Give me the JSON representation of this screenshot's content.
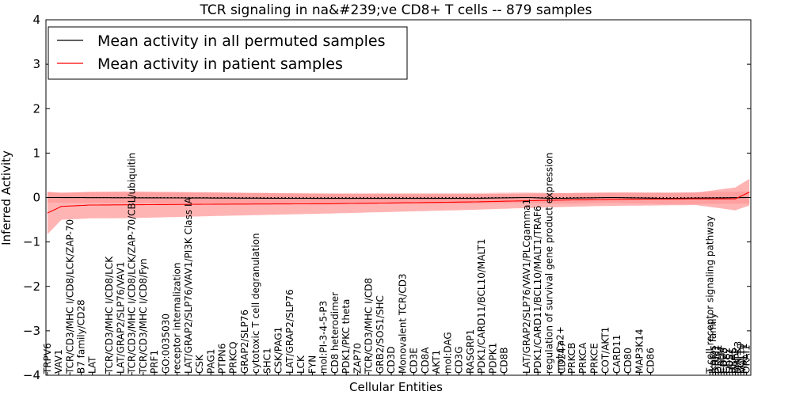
{
  "chart_data": {
    "type": "line",
    "title": "TCR signaling in na&#239;ve CD8+ T cells -- 879 samples",
    "xlabel": "Cellular Entities",
    "ylabel": "Inferred Activity",
    "ylim": [
      -4,
      4
    ],
    "yticks": [
      -4,
      -3,
      -2,
      -1,
      0,
      1,
      2,
      3,
      4
    ],
    "ytick_labels": [
      "−4",
      "−3",
      "−2",
      "−1",
      "0",
      "1",
      "2",
      "3",
      "4"
    ],
    "reference_line": 0,
    "legend": {
      "placement": "top-left",
      "entries": [
        {
          "label": "Mean activity in all permuted samples",
          "color": "#000000"
        },
        {
          "label": "Mean activity in patient samples",
          "color": "#ff0000"
        }
      ]
    },
    "n_points": 250,
    "series": [
      {
        "name": "Mean activity in all permuted samples",
        "color": "#000000",
        "band_color": "#ff9999",
        "knots": [
          [
            0,
            0.0
          ],
          [
            50,
            -0.01
          ],
          [
            100,
            -0.02
          ],
          [
            150,
            -0.02
          ],
          [
            160,
            -0.01
          ],
          [
            170,
            0.0
          ],
          [
            180,
            -0.02
          ],
          [
            200,
            0.0
          ],
          [
            220,
            -0.02
          ],
          [
            235,
            -0.01
          ],
          [
            249,
            0.0
          ]
        ],
        "band_half_width": [
          [
            0,
            0.12
          ],
          [
            50,
            0.12
          ],
          [
            100,
            0.12
          ],
          [
            200,
            0.12
          ],
          [
            249,
            0.14
          ]
        ]
      },
      {
        "name": "Mean activity in patient samples",
        "color": "#ff0000",
        "band_color": "#ff7777",
        "knots": [
          [
            0,
            -0.35
          ],
          [
            5,
            -0.2
          ],
          [
            15,
            -0.17
          ],
          [
            60,
            -0.15
          ],
          [
            100,
            -0.14
          ],
          [
            150,
            -0.1
          ],
          [
            180,
            -0.06
          ],
          [
            200,
            -0.04
          ],
          [
            230,
            -0.03
          ],
          [
            244,
            -0.03
          ],
          [
            249,
            0.12
          ]
        ],
        "band_half_width": [
          [
            0,
            0.48
          ],
          [
            5,
            0.3
          ],
          [
            30,
            0.3
          ],
          [
            100,
            0.22
          ],
          [
            160,
            0.17
          ],
          [
            190,
            0.15
          ],
          [
            230,
            0.14
          ],
          [
            249,
            0.3
          ]
        ]
      }
    ],
    "tick_labels": [
      {
        "label": "TRPV6",
        "index": 0
      },
      {
        "label": "VAV1",
        "index": 4
      },
      {
        "label": "TCR/CD3/MHC I/CD8/LCK/ZAP-70",
        "index": 8
      },
      {
        "label": "B7 family/CD28",
        "index": 12
      },
      {
        "label": "LAT",
        "index": 16
      },
      {
        "label": "TCR/CD3/MHC I/CD8/LCK",
        "index": 22
      },
      {
        "label": "LAT/GRAP2/SLP76/VAV1",
        "index": 26
      },
      {
        "label": "TCR/CD3/MHC I/CD8/LCK/ZAP-70/CBL/ubiquitin",
        "index": 30
      },
      {
        "label": "TCR/CD3/MHC I/CD8/Fyn",
        "index": 34
      },
      {
        "label": "PRF1",
        "index": 38
      },
      {
        "label": "GO:0035030",
        "index": 42
      },
      {
        "label": "receptor internalization",
        "index": 46
      },
      {
        "label": "LAT/GRAP2/SLP76/VAV1/PI3K Class IA",
        "index": 50
      },
      {
        "label": "CSK",
        "index": 54
      },
      {
        "label": "PAG1",
        "index": 58
      },
      {
        "label": "PTPN6",
        "index": 62
      },
      {
        "label": "PRKCQ",
        "index": 66
      },
      {
        "label": "GRAP2/SLP76",
        "index": 70
      },
      {
        "label": "cytotoxic T cell degranulation",
        "index": 74
      },
      {
        "label": "SHC1",
        "index": 78
      },
      {
        "label": "CSK/PAG1",
        "index": 82
      },
      {
        "label": "LAT/GRAP2/SLP76",
        "index": 86
      },
      {
        "label": "LCK",
        "index": 90
      },
      {
        "label": "FYN",
        "index": 94
      },
      {
        "label": "mol:PI-3-4-5-P3",
        "index": 98
      },
      {
        "label": "CD8 heterodimer",
        "index": 102
      },
      {
        "label": "PDK1/PKC theta",
        "index": 106
      },
      {
        "label": "ZAP70",
        "index": 110
      },
      {
        "label": "TCR/CD3/MHC I/CD8",
        "index": 114
      },
      {
        "label": "GRB2/SOS1/SHC",
        "index": 118
      },
      {
        "label": "CD3D",
        "index": 122
      },
      {
        "label": "Monovalent TCR/CD3",
        "index": 126
      },
      {
        "label": "CD3E",
        "index": 130
      },
      {
        "label": "CD8A",
        "index": 134
      },
      {
        "label": "AKT1",
        "index": 138
      },
      {
        "label": "mol:DAG",
        "index": 142
      },
      {
        "label": "CD3G",
        "index": 146
      },
      {
        "label": "RASGRP1",
        "index": 150
      },
      {
        "label": "PDK1/CARD11/BCL10/MALT1",
        "index": 154
      },
      {
        "label": "PDPK1",
        "index": 158
      },
      {
        "label": "CD8B",
        "index": 162
      },
      {
        "label": "LAT/GRAP2/SLP76/VAV1/PLCgamma1",
        "index": 170
      },
      {
        "label": "PDK1/CARD11/BCL10/MALT1/TRAF6",
        "index": 174
      },
      {
        "label": "regulation of survival gene product expression",
        "index": 178
      },
      {
        "label": "mol:Ca2+",
        "index": 182
      },
      {
        "label": "CD247",
        "index": 182.5
      },
      {
        "label": "PRKCB",
        "index": 186
      },
      {
        "label": "PRKCA",
        "index": 190
      },
      {
        "label": "PRKCE",
        "index": 194
      },
      {
        "label": "COT/AKT1",
        "index": 198
      },
      {
        "label": "CARD11",
        "index": 202
      },
      {
        "label": "CD80",
        "index": 206
      },
      {
        "label": "MAP3K14",
        "index": 210
      },
      {
        "label": "CD86",
        "index": 214
      },
      {
        "label": "T cell receptor signaling pathway",
        "index": 235
      },
      {
        "label": "Ikaros family",
        "index": 236
      },
      {
        "label": "STIM1",
        "index": 237
      },
      {
        "label": "ORAI1",
        "index": 238
      },
      {
        "label": "CALM",
        "index": 239
      },
      {
        "label": "CD28",
        "index": 240
      },
      {
        "label": "GRB2",
        "index": 241
      },
      {
        "label": "SOS1",
        "index": 242
      },
      {
        "label": "HRAS",
        "index": 243
      },
      {
        "label": "RAF1",
        "index": 244
      },
      {
        "label": "MAPK3",
        "index": 245
      },
      {
        "label": "BCL10",
        "index": 246
      },
      {
        "label": "MALT1",
        "index": 247
      },
      {
        "label": "ORAI1",
        "index": 248
      }
    ]
  }
}
